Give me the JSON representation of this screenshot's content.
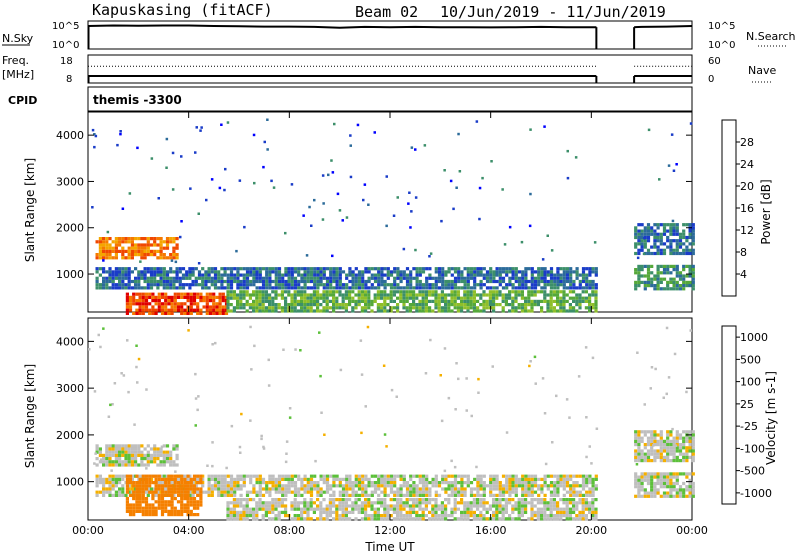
{
  "header": {
    "station": "Kapuskasing (fitACF)",
    "beam": "Beam 02",
    "dates": "10/Jun/2019 - 11/Jun/2019"
  },
  "cpid": {
    "label": "CPID",
    "value": "themis -3300"
  },
  "chart_data": [
    {
      "type": "line",
      "panel": "noise",
      "left_label": "N.Sky",
      "right_label": "N.Search",
      "left_ticks": [
        "10^5",
        "10^0"
      ],
      "right_ticks": [
        "10^5",
        "10^0"
      ],
      "series": [
        {
          "name": "N.Sky",
          "x": [
            0,
            1,
            2,
            3,
            4,
            5,
            6,
            7,
            8,
            9,
            10,
            11,
            12,
            13,
            14,
            15,
            16,
            17,
            18,
            19,
            20.2,
            21.7,
            22,
            23,
            24
          ],
          "y": [
            4.1,
            4.2,
            4.15,
            4.2,
            4.2,
            4.1,
            4.05,
            4.0,
            4.0,
            3.95,
            3.8,
            3.95,
            3.9,
            3.95,
            3.9,
            3.9,
            3.85,
            3.9,
            3.95,
            3.9,
            3.9,
            3.9,
            3.95,
            4.0,
            4.1
          ]
        }
      ],
      "gaps": [
        [
          20.2,
          21.7
        ]
      ]
    },
    {
      "type": "line",
      "panel": "frequency",
      "left_label": "Freq.",
      "left_unit": "[MHz]",
      "right_label": "Nave",
      "left_ticks": [
        "18",
        "8"
      ],
      "right_ticks": [
        "60",
        "0"
      ],
      "series": [
        {
          "name": "Freq.",
          "x": [
            0,
            24
          ],
          "y": [
            10.5,
            10.5
          ]
        },
        {
          "name": "Nave",
          "x": [
            0,
            24
          ],
          "y": [
            14,
            14
          ]
        }
      ],
      "gaps": [
        [
          20.2,
          21.7
        ]
      ]
    },
    {
      "type": "heatmap",
      "panel": "power",
      "ylabel": "Slant Range [km]",
      "yticks": [
        1000,
        2000,
        3000,
        4000
      ],
      "ylim": [
        180,
        4500
      ],
      "xlim": [
        0,
        24
      ],
      "colorbar": {
        "label": "Power [dB]",
        "ticks": [
          "4",
          "8",
          "12",
          "16",
          "20",
          "24",
          "28"
        ],
        "colors": [
          "#0000ff",
          "#1a3cc8",
          "#2c6b9a",
          "#3c8f6a",
          "#55a83a",
          "#8fbf2a",
          "#f0c000",
          "#f5a500",
          "#f57a00",
          "#f04800",
          "#e00000"
        ]
      },
      "regions": [
        {
          "t0": 0.3,
          "t1": 3.6,
          "r0": 1350,
          "r1": 1800,
          "level": 8
        },
        {
          "t0": 0.3,
          "t1": 20.2,
          "r0": 720,
          "r1": 1150,
          "level": 2
        },
        {
          "t0": 1.5,
          "t1": 5.5,
          "r0": 180,
          "r1": 600,
          "level": 9
        },
        {
          "t0": 5.5,
          "t1": 20.2,
          "r0": 180,
          "r1": 650,
          "level": 4
        },
        {
          "t0": 21.7,
          "t1": 24,
          "r0": 700,
          "r1": 1200,
          "level": 3
        },
        {
          "t0": 21.7,
          "t1": 24,
          "r0": 1450,
          "r1": 2100,
          "level": 2
        }
      ]
    },
    {
      "type": "heatmap",
      "panel": "velocity",
      "ylabel": "Slant Range [km]",
      "xlabel": "Time UT",
      "xticks": [
        "00:00",
        "04:00",
        "08:00",
        "12:00",
        "16:00",
        "20:00",
        "00:00"
      ],
      "yticks": [
        1000,
        2000,
        3000,
        4000
      ],
      "ylim": [
        180,
        4500
      ],
      "xlim": [
        0,
        24
      ],
      "colorbar": {
        "label": "Velocity [m s-1]",
        "ticks": [
          "1000",
          "500",
          "100",
          "25",
          "-25",
          "-100",
          "-500",
          "-1000"
        ],
        "colors": [
          "#1432c8",
          "#2a6ab4",
          "#2e8c4a",
          "#5cc03a",
          "#bfbfbf",
          "#bfbfbf",
          "#f5b000",
          "#f58000",
          "#f04000",
          "#e00000"
        ]
      },
      "regions": [
        {
          "t0": 0.3,
          "t1": 3.6,
          "r0": 1350,
          "r1": 1800,
          "v": 0
        },
        {
          "t0": 0.3,
          "t1": 20.2,
          "r0": 720,
          "r1": 1150,
          "v": 0
        },
        {
          "t0": 1.5,
          "t1": 4.5,
          "r0": 300,
          "r1": 1150,
          "v": -150
        },
        {
          "t0": 5.5,
          "t1": 20.2,
          "r0": 180,
          "r1": 650,
          "v": 0
        },
        {
          "t0": 21.7,
          "t1": 24,
          "r0": 700,
          "r1": 1200,
          "v": 0
        },
        {
          "t0": 21.7,
          "t1": 24,
          "r0": 1450,
          "r1": 2100,
          "v": 0
        }
      ]
    }
  ]
}
